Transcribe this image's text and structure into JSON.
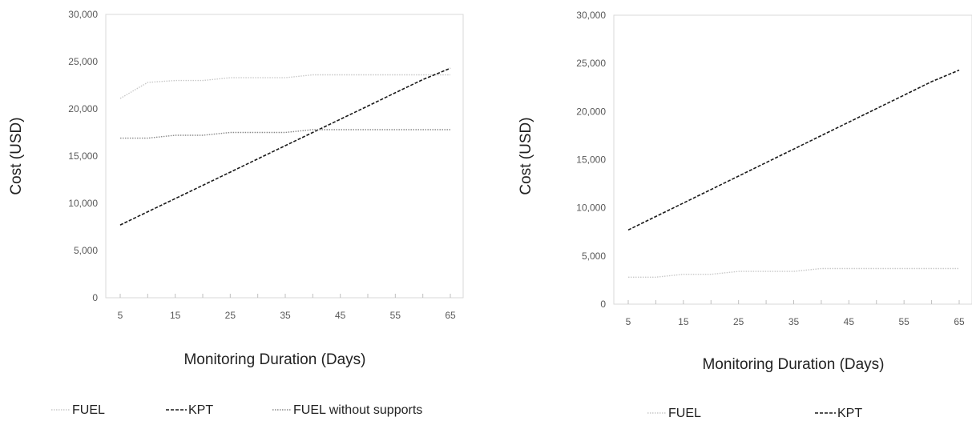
{
  "chart_data": [
    {
      "type": "line",
      "title": "",
      "xlabel": "Monitoring Duration (Days)",
      "ylabel": "Cost (USD)",
      "x": [
        5,
        10,
        15,
        20,
        25,
        30,
        35,
        40,
        45,
        50,
        55,
        60,
        65
      ],
      "x_tick_labels": [
        "5",
        "15",
        "25",
        "35",
        "45",
        "55",
        "65"
      ],
      "y_tick_labels": [
        "0",
        "5,000",
        "10,000",
        "15,000",
        "20,000",
        "25,000",
        "30,000"
      ],
      "xlim": [
        5,
        65
      ],
      "ylim": [
        0,
        30000
      ],
      "grid": false,
      "legend_position": "bottom",
      "series": [
        {
          "name": "FUEL",
          "color": "#c9c9c9",
          "style": "dotted",
          "values": [
            21100,
            22800,
            23000,
            23000,
            23300,
            23300,
            23300,
            23600,
            23600,
            23600,
            23600,
            23600,
            23600
          ]
        },
        {
          "name": "KPT",
          "color": "#1a1a1a",
          "style": "dashed",
          "values": [
            7700,
            9100,
            10500,
            11900,
            13300,
            14700,
            16100,
            17500,
            18900,
            20300,
            21700,
            23100,
            24300
          ]
        },
        {
          "name": "FUEL without supports",
          "color": "#8a8a8a",
          "style": "dotted",
          "values": [
            16900,
            16900,
            17200,
            17200,
            17500,
            17500,
            17500,
            17800,
            17800,
            17800,
            17800,
            17800,
            17800
          ]
        }
      ]
    },
    {
      "type": "line",
      "title": "",
      "xlabel": "Monitoring Duration (Days)",
      "ylabel": "Cost (USD)",
      "x": [
        5,
        10,
        15,
        20,
        25,
        30,
        35,
        40,
        45,
        50,
        55,
        60,
        65
      ],
      "x_tick_labels": [
        "5",
        "15",
        "25",
        "35",
        "45",
        "55",
        "65"
      ],
      "y_tick_labels": [
        "0",
        "5,000",
        "10,000",
        "15,000",
        "20,000",
        "25,000",
        "30,000"
      ],
      "xlim": [
        5,
        65
      ],
      "ylim": [
        0,
        30000
      ],
      "grid": false,
      "legend_position": "bottom",
      "series": [
        {
          "name": "FUEL",
          "color": "#c9c9c9",
          "style": "dotted",
          "values": [
            2800,
            2800,
            3100,
            3100,
            3400,
            3400,
            3400,
            3700,
            3700,
            3700,
            3700,
            3700,
            3700
          ]
        },
        {
          "name": "KPT",
          "color": "#1a1a1a",
          "style": "dashed",
          "values": [
            7700,
            9100,
            10500,
            11900,
            13300,
            14700,
            16100,
            17500,
            18900,
            20300,
            21700,
            23100,
            24300
          ]
        }
      ]
    }
  ]
}
